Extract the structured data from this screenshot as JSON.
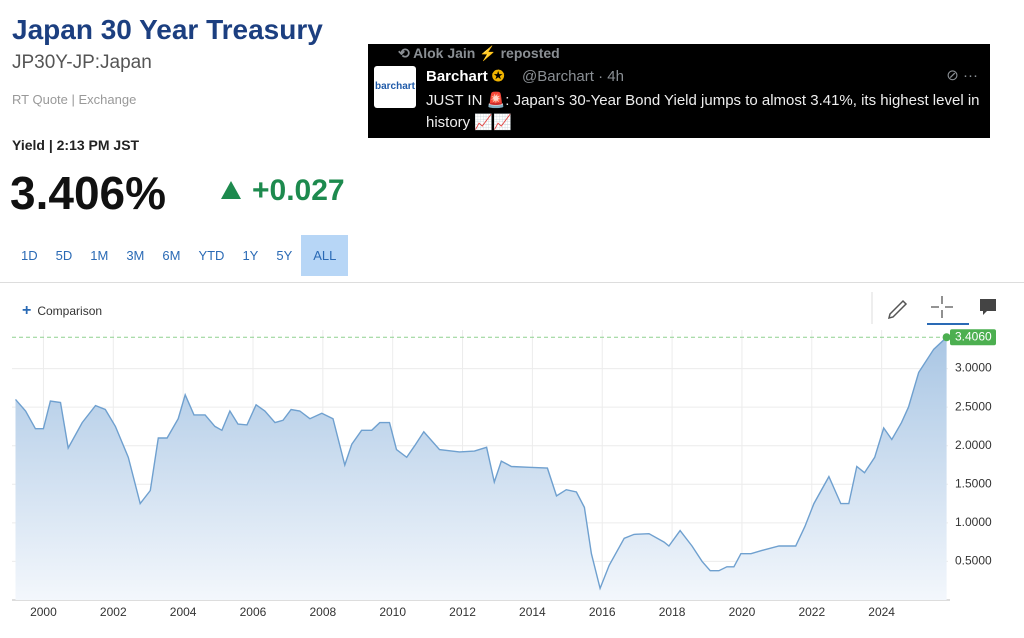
{
  "header": {
    "title": "Japan 30 Year Treasury",
    "symbol": "JP30Y-JP:Japan",
    "quote_type": "RT Quote | Exchange",
    "yield_time": "Yield | 2:13 PM JST",
    "price": "3.406%",
    "change": "+0.027"
  },
  "ranges": [
    "1D",
    "5D",
    "1M",
    "3M",
    "6M",
    "YTD",
    "1Y",
    "5Y",
    "ALL"
  ],
  "comparison": "Comparison",
  "tweet": {
    "reposter": "Alok Jain",
    "reposted": "reposted",
    "avatar": "barchart",
    "name": "Barchart",
    "handle": "@Barchart · 4h",
    "text": "JUST IN 🚨: Japan's 30-Year Bond Yield jumps to almost 3.41%, its highest level in history 📈📈"
  },
  "chart_data": {
    "type": "line",
    "color": "#6fa0cf",
    "grid": true,
    "x": [
      1999.2,
      1999.49,
      1999.77,
      2000.0,
      2000.2,
      2000.49,
      2000.71,
      2001.11,
      2001.49,
      2001.77,
      2002.06,
      2002.43,
      2002.77,
      2003.06,
      2003.29,
      2003.54,
      2003.86,
      2004.06,
      2004.31,
      2004.63,
      2004.91,
      2005.11,
      2005.34,
      2005.57,
      2005.83,
      2006.09,
      2006.34,
      2006.63,
      2006.86,
      2007.09,
      2007.34,
      2007.63,
      2007.97,
      2008.29,
      2008.63,
      2008.83,
      2009.11,
      2009.4,
      2009.63,
      2009.91,
      2010.11,
      2010.4,
      2010.63,
      2010.89,
      2011.34,
      2011.91,
      2012.34,
      2012.69,
      2012.91,
      2013.11,
      2013.4,
      2013.91,
      2014.43,
      2014.69,
      2014.97,
      2015.26,
      2015.49,
      2015.69,
      2015.94,
      2016.2,
      2016.63,
      2016.91,
      2017.34,
      2017.77,
      2017.91,
      2018.23,
      2018.57,
      2018.86,
      2019.09,
      2019.34,
      2019.57,
      2019.77,
      2019.97,
      2020.26,
      2020.63,
      2021.06,
      2021.54,
      2021.8,
      2022.06,
      2022.49,
      2022.83,
      2023.06,
      2023.29,
      2023.51,
      2023.8,
      2024.06,
      2024.29,
      2024.57,
      2024.77,
      2025.06,
      2025.49,
      2025.86
    ],
    "values": [
      2.6,
      2.45,
      2.22,
      2.22,
      2.58,
      2.56,
      1.97,
      2.3,
      2.52,
      2.47,
      2.25,
      1.85,
      1.25,
      1.42,
      2.1,
      2.1,
      2.35,
      2.66,
      2.4,
      2.4,
      2.25,
      2.2,
      2.45,
      2.28,
      2.27,
      2.53,
      2.45,
      2.3,
      2.33,
      2.47,
      2.45,
      2.35,
      2.42,
      2.35,
      1.75,
      2.02,
      2.2,
      2.2,
      2.3,
      2.3,
      1.95,
      1.85,
      2.0,
      2.18,
      1.95,
      1.92,
      1.93,
      1.98,
      1.53,
      1.8,
      1.73,
      1.72,
      1.71,
      1.35,
      1.43,
      1.4,
      1.2,
      0.6,
      0.15,
      0.45,
      0.8,
      0.85,
      0.86,
      0.75,
      0.7,
      0.9,
      0.7,
      0.5,
      0.38,
      0.38,
      0.43,
      0.43,
      0.6,
      0.6,
      0.65,
      0.7,
      0.7,
      0.95,
      1.25,
      1.6,
      1.25,
      1.25,
      1.73,
      1.65,
      1.85,
      2.23,
      2.08,
      2.3,
      2.5,
      2.95,
      3.25,
      3.406
    ],
    "value_labels": [
      null,
      null,
      null,
      null,
      null,
      null,
      null,
      null,
      null,
      null,
      null,
      null,
      null,
      null,
      null,
      null,
      null,
      null,
      null,
      null,
      null,
      null,
      null,
      null,
      null,
      null,
      null,
      null,
      null,
      null,
      null,
      null,
      null,
      null,
      null,
      null,
      null,
      null,
      null,
      null,
      null,
      null,
      null,
      null,
      null,
      null,
      null,
      null,
      null,
      null,
      null,
      null,
      null,
      null,
      null,
      null,
      null,
      null,
      null,
      null,
      null,
      null,
      null,
      null,
      null,
      null,
      null,
      null,
      null,
      null,
      null,
      null,
      null,
      null,
      null,
      null,
      null,
      null,
      null,
      null,
      null,
      null,
      null,
      null,
      null,
      null,
      null,
      null,
      null,
      null,
      null,
      "3.4060"
    ],
    "xlim": [
      1999.1,
      2025.9
    ],
    "ylim": [
      0,
      3.5
    ],
    "xticks": [
      2000,
      2002,
      2004,
      2006,
      2008,
      2010,
      2012,
      2014,
      2016,
      2018,
      2020,
      2022,
      2024
    ],
    "yticks": [
      {
        "value": 0.5,
        "label": "0.5000"
      },
      {
        "value": 1,
        "label": "1.0000"
      },
      {
        "value": 1.5,
        "label": "1.5000"
      },
      {
        "value": 2,
        "label": "2.0000"
      },
      {
        "value": 2.5,
        "label": "2.5000"
      },
      {
        "value": 3,
        "label": "3.0000"
      }
    ]
  }
}
